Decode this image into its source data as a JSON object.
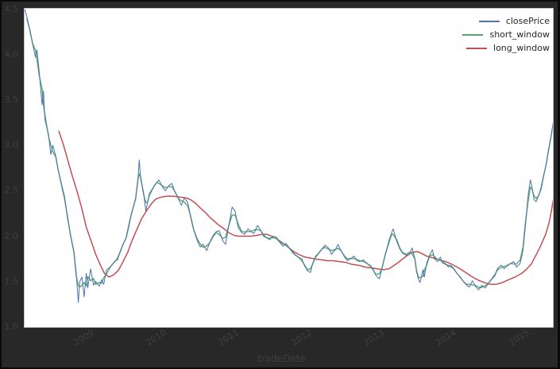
{
  "figure": {
    "background_color": "#282828",
    "plot_background_color": "#ffffff",
    "tick_label_color": "#3f3f3f",
    "spine_color": "#c4c4c4"
  },
  "axes": {
    "xlabel": "tradeDate",
    "x_ticks": [
      2009,
      2010,
      2011,
      2012,
      2013,
      2014,
      2015
    ],
    "y_ticks": [
      4.5,
      4.0,
      3.5,
      3.0,
      2.5,
      2.0,
      1.5,
      1.0
    ],
    "xlim": [
      2008.16,
      2015.44
    ],
    "ylim": [
      1.0,
      4.505
    ],
    "x_tick_rotation_deg": 32,
    "grid": false
  },
  "legend": {
    "position": "upper right",
    "frame": false,
    "items": [
      {
        "label": "closePrice",
        "color": "#4c72b0"
      },
      {
        "label": "short_window",
        "color": "#55a868"
      },
      {
        "label": "long_window",
        "color": "#c44e52"
      }
    ]
  },
  "chart_data": {
    "type": "line",
    "title": "",
    "xlabel": "tradeDate",
    "ylabel": "",
    "xlim": [
      2008.16,
      2015.44
    ],
    "ylim": [
      1.0,
      4.505
    ],
    "series": [
      {
        "name": "closePrice",
        "color": "#4c72b0",
        "line_width": 1,
        "points": [
          [
            2008.16,
            4.5
          ],
          [
            2008.19,
            4.42
          ],
          [
            2008.23,
            4.28
          ],
          [
            2008.27,
            4.12
          ],
          [
            2008.31,
            3.97
          ],
          [
            2008.33,
            4.05
          ],
          [
            2008.36,
            3.82
          ],
          [
            2008.4,
            3.45
          ],
          [
            2008.42,
            3.6
          ],
          [
            2008.44,
            3.28
          ],
          [
            2008.49,
            3.12
          ],
          [
            2008.52,
            2.9
          ],
          [
            2008.55,
            3.0
          ],
          [
            2008.59,
            2.88
          ],
          [
            2008.62,
            2.74
          ],
          [
            2008.66,
            2.6
          ],
          [
            2008.71,
            2.44
          ],
          [
            2008.75,
            2.2
          ],
          [
            2008.79,
            2.03
          ],
          [
            2008.84,
            1.83
          ],
          [
            2008.87,
            1.6
          ],
          [
            2008.9,
            1.27
          ],
          [
            2008.92,
            1.5
          ],
          [
            2008.95,
            1.55
          ],
          [
            2008.98,
            1.33
          ],
          [
            2009.01,
            1.59
          ],
          [
            2009.03,
            1.43
          ],
          [
            2009.07,
            1.64
          ],
          [
            2009.11,
            1.46
          ],
          [
            2009.14,
            1.5
          ],
          [
            2009.19,
            1.45
          ],
          [
            2009.22,
            1.52
          ],
          [
            2009.25,
            1.47
          ],
          [
            2009.29,
            1.63
          ],
          [
            2009.34,
            1.66
          ],
          [
            2009.37,
            1.69
          ],
          [
            2009.4,
            1.72
          ],
          [
            2009.44,
            1.74
          ],
          [
            2009.47,
            1.81
          ],
          [
            2009.51,
            1.9
          ],
          [
            2009.56,
            1.98
          ],
          [
            2009.59,
            2.08
          ],
          [
            2009.63,
            2.24
          ],
          [
            2009.69,
            2.41
          ],
          [
            2009.72,
            2.6
          ],
          [
            2009.74,
            2.84
          ],
          [
            2009.76,
            2.62
          ],
          [
            2009.8,
            2.48
          ],
          [
            2009.83,
            2.28
          ],
          [
            2009.85,
            2.35
          ],
          [
            2009.88,
            2.47
          ],
          [
            2009.92,
            2.52
          ],
          [
            2009.95,
            2.56
          ],
          [
            2009.98,
            2.59
          ],
          [
            2010.01,
            2.62
          ],
          [
            2010.06,
            2.54
          ],
          [
            2010.1,
            2.5
          ],
          [
            2010.15,
            2.56
          ],
          [
            2010.19,
            2.58
          ],
          [
            2010.23,
            2.49
          ],
          [
            2010.28,
            2.41
          ],
          [
            2010.32,
            2.34
          ],
          [
            2010.36,
            2.42
          ],
          [
            2010.41,
            2.37
          ],
          [
            2010.45,
            2.2
          ],
          [
            2010.49,
            2.07
          ],
          [
            2010.54,
            1.95
          ],
          [
            2010.58,
            1.88
          ],
          [
            2010.62,
            1.91
          ],
          [
            2010.67,
            1.84
          ],
          [
            2010.71,
            1.93
          ],
          [
            2010.76,
            2.01
          ],
          [
            2010.8,
            2.05
          ],
          [
            2010.84,
            2.06
          ],
          [
            2010.89,
            1.95
          ],
          [
            2010.93,
            1.91
          ],
          [
            2010.97,
            2.1
          ],
          [
            2011.02,
            2.32
          ],
          [
            2011.06,
            2.28
          ],
          [
            2011.1,
            2.1
          ],
          [
            2011.15,
            2.04
          ],
          [
            2011.19,
            2.02
          ],
          [
            2011.24,
            2.08
          ],
          [
            2011.28,
            2.05
          ],
          [
            2011.32,
            2.03
          ],
          [
            2011.37,
            2.12
          ],
          [
            2011.41,
            2.07
          ],
          [
            2011.45,
            2.0
          ],
          [
            2011.5,
            1.98
          ],
          [
            2011.54,
            1.96
          ],
          [
            2011.58,
            2.0
          ],
          [
            2011.63,
            1.99
          ],
          [
            2011.67,
            1.94
          ],
          [
            2011.72,
            1.89
          ],
          [
            2011.76,
            1.92
          ],
          [
            2011.8,
            1.88
          ],
          [
            2011.85,
            1.82
          ],
          [
            2011.89,
            1.79
          ],
          [
            2011.93,
            1.77
          ],
          [
            2011.98,
            1.75
          ],
          [
            2012.02,
            1.67
          ],
          [
            2012.06,
            1.62
          ],
          [
            2012.1,
            1.6
          ],
          [
            2012.13,
            1.7
          ],
          [
            2012.17,
            1.78
          ],
          [
            2012.22,
            1.82
          ],
          [
            2012.26,
            1.86
          ],
          [
            2012.3,
            1.9
          ],
          [
            2012.35,
            1.87
          ],
          [
            2012.39,
            1.8
          ],
          [
            2012.44,
            1.85
          ],
          [
            2012.48,
            1.91
          ],
          [
            2012.52,
            1.84
          ],
          [
            2012.57,
            1.77
          ],
          [
            2012.61,
            1.73
          ],
          [
            2012.65,
            1.75
          ],
          [
            2012.7,
            1.78
          ],
          [
            2012.74,
            1.73
          ],
          [
            2012.78,
            1.72
          ],
          [
            2012.83,
            1.74
          ],
          [
            2012.87,
            1.7
          ],
          [
            2012.92,
            1.68
          ],
          [
            2012.96,
            1.64
          ],
          [
            2013.0,
            1.57
          ],
          [
            2013.05,
            1.53
          ],
          [
            2013.09,
            1.66
          ],
          [
            2013.13,
            1.79
          ],
          [
            2013.18,
            1.95
          ],
          [
            2013.22,
            2.04
          ],
          [
            2013.24,
            2.08
          ],
          [
            2013.29,
            1.94
          ],
          [
            2013.33,
            1.86
          ],
          [
            2013.37,
            1.81
          ],
          [
            2013.42,
            1.79
          ],
          [
            2013.46,
            1.8
          ],
          [
            2013.5,
            1.87
          ],
          [
            2013.54,
            1.75
          ],
          [
            2013.56,
            1.61
          ],
          [
            2013.59,
            1.52
          ],
          [
            2013.61,
            1.49
          ],
          [
            2013.65,
            1.63
          ],
          [
            2013.67,
            1.55
          ],
          [
            2013.7,
            1.7
          ],
          [
            2013.74,
            1.79
          ],
          [
            2013.78,
            1.85
          ],
          [
            2013.81,
            1.75
          ],
          [
            2013.85,
            1.72
          ],
          [
            2013.89,
            1.77
          ],
          [
            2013.92,
            1.7
          ],
          [
            2013.96,
            1.7
          ],
          [
            2014.0,
            1.66
          ],
          [
            2014.03,
            1.68
          ],
          [
            2014.07,
            1.65
          ],
          [
            2014.11,
            1.6
          ],
          [
            2014.16,
            1.55
          ],
          [
            2014.2,
            1.51
          ],
          [
            2014.25,
            1.46
          ],
          [
            2014.29,
            1.44
          ],
          [
            2014.33,
            1.51
          ],
          [
            2014.38,
            1.44
          ],
          [
            2014.42,
            1.41
          ],
          [
            2014.46,
            1.46
          ],
          [
            2014.51,
            1.43
          ],
          [
            2014.55,
            1.48
          ],
          [
            2014.59,
            1.52
          ],
          [
            2014.64,
            1.56
          ],
          [
            2014.68,
            1.65
          ],
          [
            2014.73,
            1.68
          ],
          [
            2014.77,
            1.64
          ],
          [
            2014.81,
            1.68
          ],
          [
            2014.86,
            1.7
          ],
          [
            2014.9,
            1.72
          ],
          [
            2014.94,
            1.66
          ],
          [
            2014.99,
            1.7
          ],
          [
            2015.03,
            1.85
          ],
          [
            2015.06,
            2.1
          ],
          [
            2015.1,
            2.45
          ],
          [
            2015.13,
            2.62
          ],
          [
            2015.15,
            2.55
          ],
          [
            2015.18,
            2.4
          ],
          [
            2015.21,
            2.38
          ],
          [
            2015.25,
            2.46
          ],
          [
            2015.28,
            2.52
          ],
          [
            2015.31,
            2.65
          ],
          [
            2015.35,
            2.8
          ],
          [
            2015.38,
            2.95
          ],
          [
            2015.41,
            3.08
          ],
          [
            2015.43,
            3.18
          ],
          [
            2015.45,
            3.28
          ]
        ]
      },
      {
        "name": "short_window",
        "color": "#55a868",
        "line_width": 1.4,
        "derived_from": "closePrice",
        "method": "centered_moving_average",
        "window_points": 3
      },
      {
        "name": "long_window",
        "color": "#c44e52",
        "line_width": 1.5,
        "points": [
          [
            2008.63,
            3.16
          ],
          [
            2008.69,
            3.02
          ],
          [
            2008.75,
            2.85
          ],
          [
            2008.81,
            2.68
          ],
          [
            2008.88,
            2.5
          ],
          [
            2008.95,
            2.3
          ],
          [
            2009.01,
            2.1
          ],
          [
            2009.08,
            1.94
          ],
          [
            2009.14,
            1.8
          ],
          [
            2009.21,
            1.67
          ],
          [
            2009.26,
            1.59
          ],
          [
            2009.32,
            1.55
          ],
          [
            2009.38,
            1.57
          ],
          [
            2009.45,
            1.62
          ],
          [
            2009.51,
            1.71
          ],
          [
            2009.58,
            1.82
          ],
          [
            2009.64,
            1.95
          ],
          [
            2009.71,
            2.08
          ],
          [
            2009.77,
            2.19
          ],
          [
            2009.84,
            2.28
          ],
          [
            2009.91,
            2.36
          ],
          [
            2009.97,
            2.41
          ],
          [
            2010.04,
            2.43
          ],
          [
            2010.12,
            2.44
          ],
          [
            2010.21,
            2.44
          ],
          [
            2010.3,
            2.43
          ],
          [
            2010.39,
            2.42
          ],
          [
            2010.45,
            2.4
          ],
          [
            2010.52,
            2.36
          ],
          [
            2010.58,
            2.31
          ],
          [
            2010.65,
            2.26
          ],
          [
            2010.71,
            2.21
          ],
          [
            2010.78,
            2.16
          ],
          [
            2010.84,
            2.12
          ],
          [
            2010.91,
            2.08
          ],
          [
            2010.97,
            2.04
          ],
          [
            2011.04,
            2.01
          ],
          [
            2011.1,
            2.0
          ],
          [
            2011.19,
            2.0
          ],
          [
            2011.28,
            2.0
          ],
          [
            2011.37,
            2.01
          ],
          [
            2011.43,
            2.02
          ],
          [
            2011.5,
            2.02
          ],
          [
            2011.56,
            2.0
          ],
          [
            2011.63,
            1.97
          ],
          [
            2011.69,
            1.94
          ],
          [
            2011.76,
            1.9
          ],
          [
            2011.82,
            1.86
          ],
          [
            2011.89,
            1.82
          ],
          [
            2011.96,
            1.79
          ],
          [
            2012.02,
            1.77
          ],
          [
            2012.09,
            1.76
          ],
          [
            2012.15,
            1.75
          ],
          [
            2012.24,
            1.74
          ],
          [
            2012.33,
            1.73
          ],
          [
            2012.41,
            1.73
          ],
          [
            2012.5,
            1.72
          ],
          [
            2012.59,
            1.71
          ],
          [
            2012.67,
            1.69
          ],
          [
            2012.76,
            1.68
          ],
          [
            2012.85,
            1.66
          ],
          [
            2012.94,
            1.65
          ],
          [
            2013.02,
            1.64
          ],
          [
            2013.11,
            1.63
          ],
          [
            2013.18,
            1.64
          ],
          [
            2013.24,
            1.67
          ],
          [
            2013.31,
            1.71
          ],
          [
            2013.37,
            1.75
          ],
          [
            2013.44,
            1.79
          ],
          [
            2013.49,
            1.82
          ],
          [
            2013.57,
            1.83
          ],
          [
            2013.63,
            1.81
          ],
          [
            2013.7,
            1.78
          ],
          [
            2013.79,
            1.76
          ],
          [
            2013.87,
            1.74
          ],
          [
            2013.96,
            1.72
          ],
          [
            2014.05,
            1.69
          ],
          [
            2014.14,
            1.65
          ],
          [
            2014.22,
            1.61
          ],
          [
            2014.31,
            1.56
          ],
          [
            2014.4,
            1.52
          ],
          [
            2014.49,
            1.49
          ],
          [
            2014.57,
            1.47
          ],
          [
            2014.66,
            1.47
          ],
          [
            2014.75,
            1.49
          ],
          [
            2014.83,
            1.52
          ],
          [
            2014.92,
            1.55
          ],
          [
            2015.01,
            1.59
          ],
          [
            2015.07,
            1.63
          ],
          [
            2015.14,
            1.69
          ],
          [
            2015.2,
            1.78
          ],
          [
            2015.27,
            1.89
          ],
          [
            2015.34,
            2.02
          ],
          [
            2015.39,
            2.15
          ],
          [
            2015.42,
            2.28
          ],
          [
            2015.45,
            2.42
          ]
        ]
      }
    ]
  }
}
